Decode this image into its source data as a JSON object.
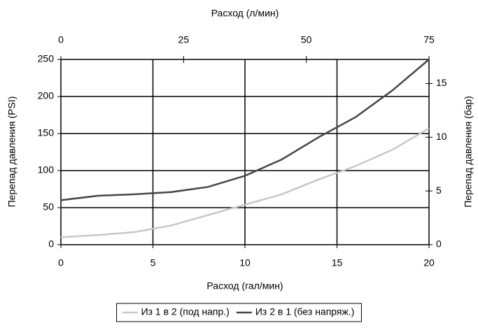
{
  "chart_data": {
    "type": "line",
    "xlabel": "Расход (гал/мин)",
    "x2label": "Расход (л/мин)",
    "ylabel": "Перепад давления (PSI)",
    "y2label": "Перепад давления (бар)",
    "x": [
      0,
      2,
      4,
      6,
      8,
      10,
      12,
      14,
      16,
      18,
      20
    ],
    "series": [
      {
        "name": "Из 1 в 2 (под напр.)",
        "color": "#c8c8c8",
        "values": [
          10,
          13,
          17,
          26,
          40,
          54,
          68,
          88,
          106,
          128,
          157
        ]
      },
      {
        "name": "Из 2 в 1 (без напряж.)",
        "color": "#404850",
        "values": [
          60,
          66,
          68,
          71,
          78,
          93,
          115,
          145,
          172,
          208,
          250
        ]
      }
    ],
    "xlim": [
      0,
      20
    ],
    "xticks": [
      0,
      5,
      10,
      15,
      20
    ],
    "x2lim": [
      0,
      75
    ],
    "x2ticks": [
      0,
      25,
      50,
      75
    ],
    "ylim": [
      0,
      250
    ],
    "yticks": [
      0,
      50,
      100,
      150,
      200,
      250
    ],
    "y2lim": [
      0,
      17.24
    ],
    "y2ticks": [
      0,
      5,
      10,
      15
    ],
    "grid": true,
    "legend": "bottom"
  }
}
